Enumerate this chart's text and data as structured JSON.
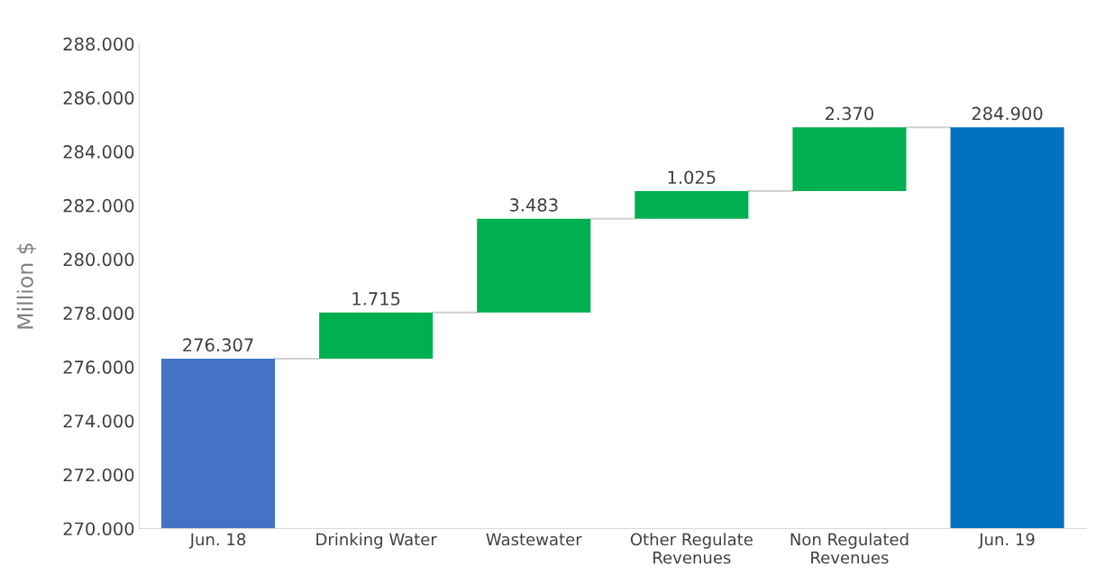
{
  "chart_data": {
    "type": "bar",
    "ylabel": "Million $",
    "categories": [
      "Jun. 18",
      "Drinking Water",
      "Wastewater",
      "Other Regulate\nRevenues",
      "Non Regulated\nRevenues",
      "Jun. 19"
    ],
    "values": [
      276.307,
      1.715,
      3.483,
      1.025,
      2.37,
      284.9
    ],
    "base": [
      0,
      276.307,
      278.022,
      281.505,
      282.53,
      0
    ],
    "colors": [
      "#4472c4",
      "#00b050",
      "#00b050",
      "#00b050",
      "#00b050",
      "#0070c0"
    ],
    "value_labels": [
      "276.307",
      "1.715",
      "3.483",
      "1.025",
      "2.370",
      "284.900"
    ],
    "ylim": [
      270,
      288
    ],
    "yticks": [
      {
        "value": 270,
        "label": "270.000"
      },
      {
        "value": 272,
        "label": "272.000"
      },
      {
        "value": 274,
        "label": "274.000"
      },
      {
        "value": 276,
        "label": "276.000"
      },
      {
        "value": 278,
        "label": "278.000"
      },
      {
        "value": 280,
        "label": "280.000"
      },
      {
        "value": 282,
        "label": "282.000"
      },
      {
        "value": 284,
        "label": "284.000"
      },
      {
        "value": 286,
        "label": "286.000"
      },
      {
        "value": 288,
        "label": "288.000"
      }
    ],
    "grid": false,
    "legend": false
  }
}
